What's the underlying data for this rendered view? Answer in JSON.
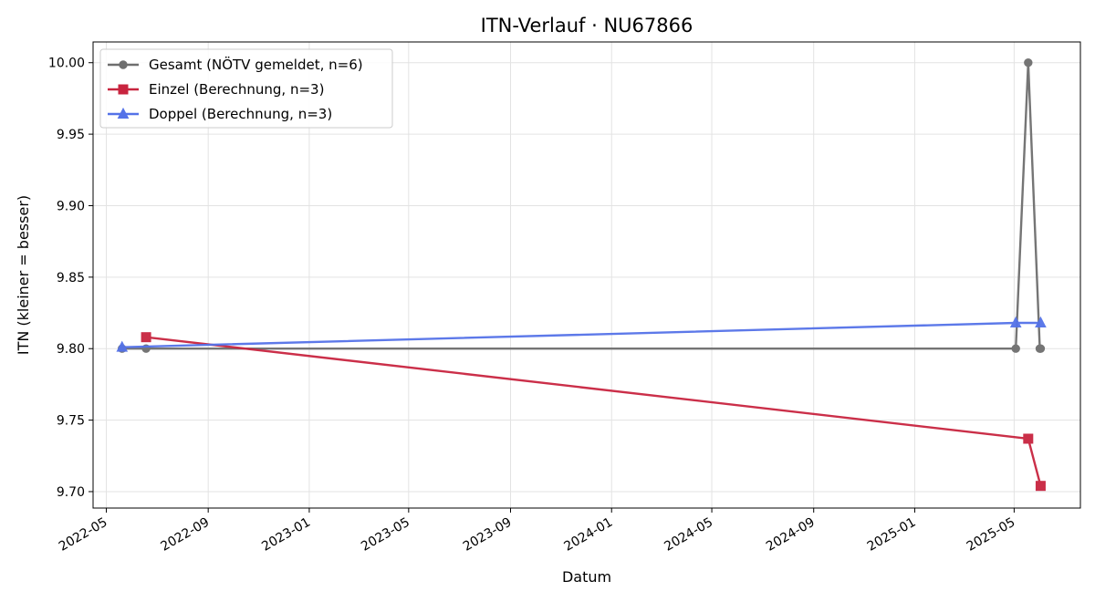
{
  "chart_data": {
    "type": "line",
    "title": "ITN-Verlauf · NU67866",
    "xlabel": "Datum",
    "ylabel": "ITN  (kleiner = besser)",
    "x_axis_type": "date",
    "xlim": [
      "2022-04-15",
      "2025-07-20"
    ],
    "ylim": [
      9.6885,
      10.0145
    ],
    "x_ticks": [
      "2022-05-01",
      "2022-09-01",
      "2023-01-01",
      "2023-05-01",
      "2023-09-01",
      "2024-01-01",
      "2024-05-01",
      "2024-09-01",
      "2025-01-01",
      "2025-05-01"
    ],
    "x_tick_labels": [
      "2022-05",
      "2022-09",
      "2023-01",
      "2023-05",
      "2023-09",
      "2024-01",
      "2024-05",
      "2024-09",
      "2025-01",
      "2025-05"
    ],
    "y_ticks": [
      9.7,
      9.75,
      9.8,
      9.85,
      9.9,
      9.95,
      10.0
    ],
    "y_tick_labels": [
      "9.70",
      "9.75",
      "9.80",
      "9.85",
      "9.90",
      "9.95",
      "10.00"
    ],
    "grid": true,
    "legend_position": "top-left",
    "series": [
      {
        "name": "Gesamt (NÖTV gemeldet, n=6)",
        "color": "#6e6e6e",
        "marker": "circle",
        "points": [
          {
            "x": "2022-05-20",
            "y": 9.8
          },
          {
            "x": "2022-06-18",
            "y": 9.8
          },
          {
            "x": "2025-05-03",
            "y": 9.8
          },
          {
            "x": "2025-05-18",
            "y": 10.0
          },
          {
            "x": "2025-06-01",
            "y": 9.8
          },
          {
            "x": "2025-06-02",
            "y": 9.8
          }
        ]
      },
      {
        "name": "Einzel (Berechnung, n=3)",
        "color": "#c8243f",
        "marker": "square",
        "points": [
          {
            "x": "2022-06-18",
            "y": 9.808
          },
          {
            "x": "2025-05-18",
            "y": 9.737
          },
          {
            "x": "2025-06-02",
            "y": 9.704
          }
        ]
      },
      {
        "name": "Doppel (Berechnung, n=3)",
        "color": "#5472e8",
        "marker": "triangle",
        "points": [
          {
            "x": "2022-05-20",
            "y": 9.801
          },
          {
            "x": "2025-05-03",
            "y": 9.818
          },
          {
            "x": "2025-06-02",
            "y": 9.818
          }
        ]
      }
    ]
  }
}
